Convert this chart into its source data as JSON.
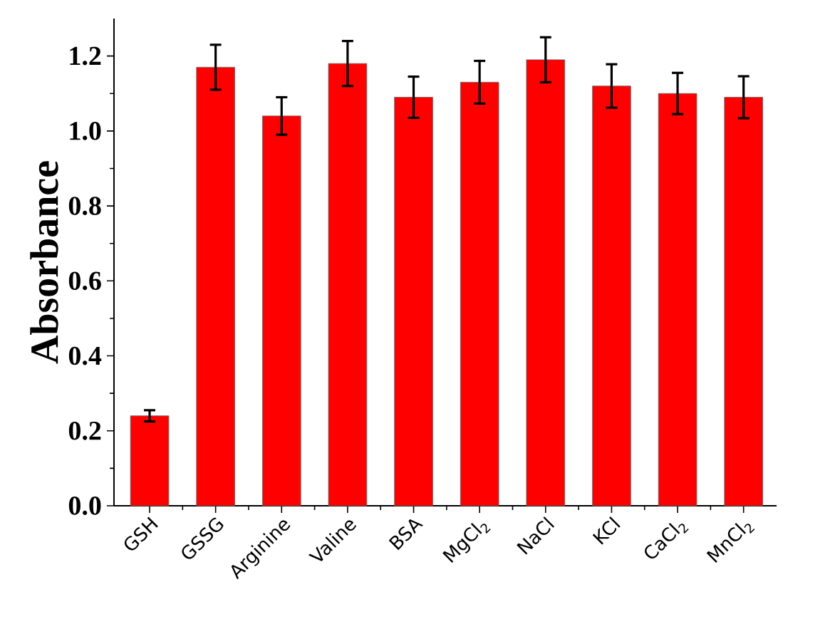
{
  "chart_data": {
    "type": "bar",
    "ylabel": "Absorbance",
    "categories": [
      "GSH",
      "GSSG",
      "Arginine",
      "Valine",
      "BSA",
      "MgCl$_{2}$",
      "NaCl",
      "KCl",
      "CaCl$_{2}$",
      "MnCl$_{2}$"
    ],
    "values": [
      0.24,
      1.17,
      1.04,
      1.18,
      1.09,
      1.13,
      1.19,
      1.12,
      1.1,
      1.09
    ],
    "errors": [
      0.015,
      0.06,
      0.05,
      0.06,
      0.055,
      0.057,
      0.06,
      0.058,
      0.055,
      0.056
    ],
    "color": "#ff0000",
    "ylim": [
      0,
      1.3
    ],
    "yticks": [
      {
        "value": 0,
        "label": "0.0"
      },
      0.2,
      0.4,
      0.6,
      0.8,
      {
        "value": 1,
        "label": "1.0"
      },
      1.2
    ],
    "grid": false
  }
}
